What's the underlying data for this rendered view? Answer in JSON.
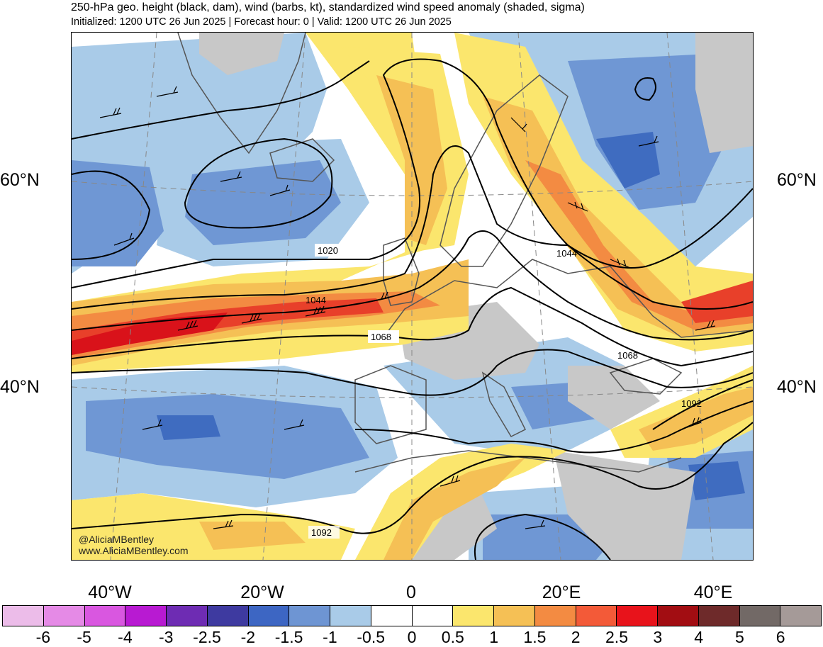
{
  "header": {
    "title": "250-hPa geo. height (black, dam), wind (barbs, kt), standardized wind speed anomaly (shaded, sigma)",
    "subtitle": "Initialized: 1200 UTC 26 Jun 2025 | Forecast hour: 0 | Valid: 1200 UTC 26 Jun 2025"
  },
  "map": {
    "lat_labels": [
      "60°N",
      "40°N"
    ],
    "lon_labels": [
      "40°W",
      "20°W",
      "0",
      "20°E",
      "40°E"
    ],
    "contour_labels": [
      "1020",
      "1044",
      "1068",
      "1044",
      "1068",
      "1092",
      "1092"
    ],
    "credit": {
      "handle": "@AliciaMBentley",
      "site": "www.AliciaMBentley.com"
    },
    "colors": {
      "neg_strong": "#3f6cc0",
      "neg_mid": "#6f97d4",
      "neg_weak": "#a9cbe8",
      "pos_weak": "#fbe66d",
      "pos_mid": "#f5c055",
      "pos_high": "#f38b42",
      "pos_strong": "#e8402a",
      "pos_max": "#d9121a",
      "land_gray": "#c8c8c8",
      "contour": "#000000"
    }
  },
  "colorbar": {
    "tick_labels": [
      "-6",
      "-5",
      "-4",
      "-3",
      "-2.5",
      "-2",
      "-1.5",
      "-1",
      "-0.5",
      "0",
      "0.5",
      "1",
      "1.5",
      "2",
      "2.5",
      "3",
      "4",
      "5",
      "6"
    ],
    "colors": [
      "#ecbce9",
      "#e58ae6",
      "#d957e0",
      "#b81ad2",
      "#6e2cb3",
      "#3e3aa0",
      "#3d66c3",
      "#6e95d3",
      "#a9cbe8",
      "#ffffff",
      "#ffffff",
      "#fbe66d",
      "#f5c055",
      "#f38b42",
      "#f35a38",
      "#e8131b",
      "#a20d12",
      "#6e2a2a",
      "#726966",
      "#a59a98"
    ]
  }
}
